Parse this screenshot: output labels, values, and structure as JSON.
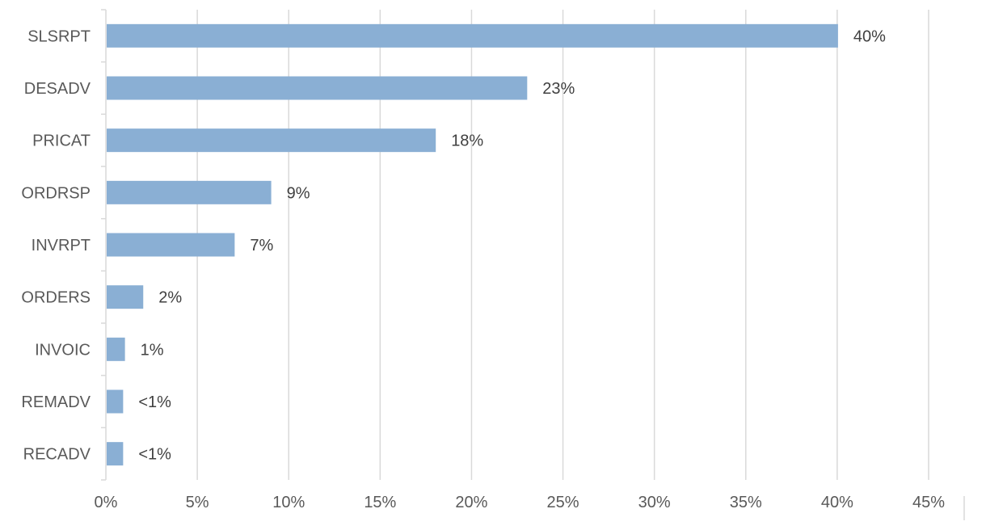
{
  "chart_data": {
    "type": "bar",
    "orientation": "horizontal",
    "categories": [
      "SLSRPT",
      "DESADV",
      "PRICAT",
      "ORDRSP",
      "INVRPT",
      "ORDERS",
      "INVOIC",
      "REMADV",
      "RECADV"
    ],
    "values": [
      40,
      23,
      18,
      9,
      7,
      2,
      1,
      0.9,
      0.9
    ],
    "data_labels": [
      "40%",
      "23%",
      "18%",
      "9%",
      "7%",
      "2%",
      "1%",
      "<1%",
      "<1%"
    ],
    "xlim": [
      0,
      45
    ],
    "x_ticks": [
      0,
      5,
      10,
      15,
      20,
      25,
      30,
      35,
      40,
      45
    ],
    "x_tick_labels": [
      "0%",
      "5%",
      "10%",
      "15%",
      "20%",
      "25%",
      "30%",
      "35%",
      "40%",
      "45%"
    ],
    "grid": "vertical",
    "legend": "none",
    "bar_color": "#8aafd4",
    "gridline_color": "#d9d9d9",
    "label_color": "#595959",
    "value_label_color": "#404040"
  }
}
